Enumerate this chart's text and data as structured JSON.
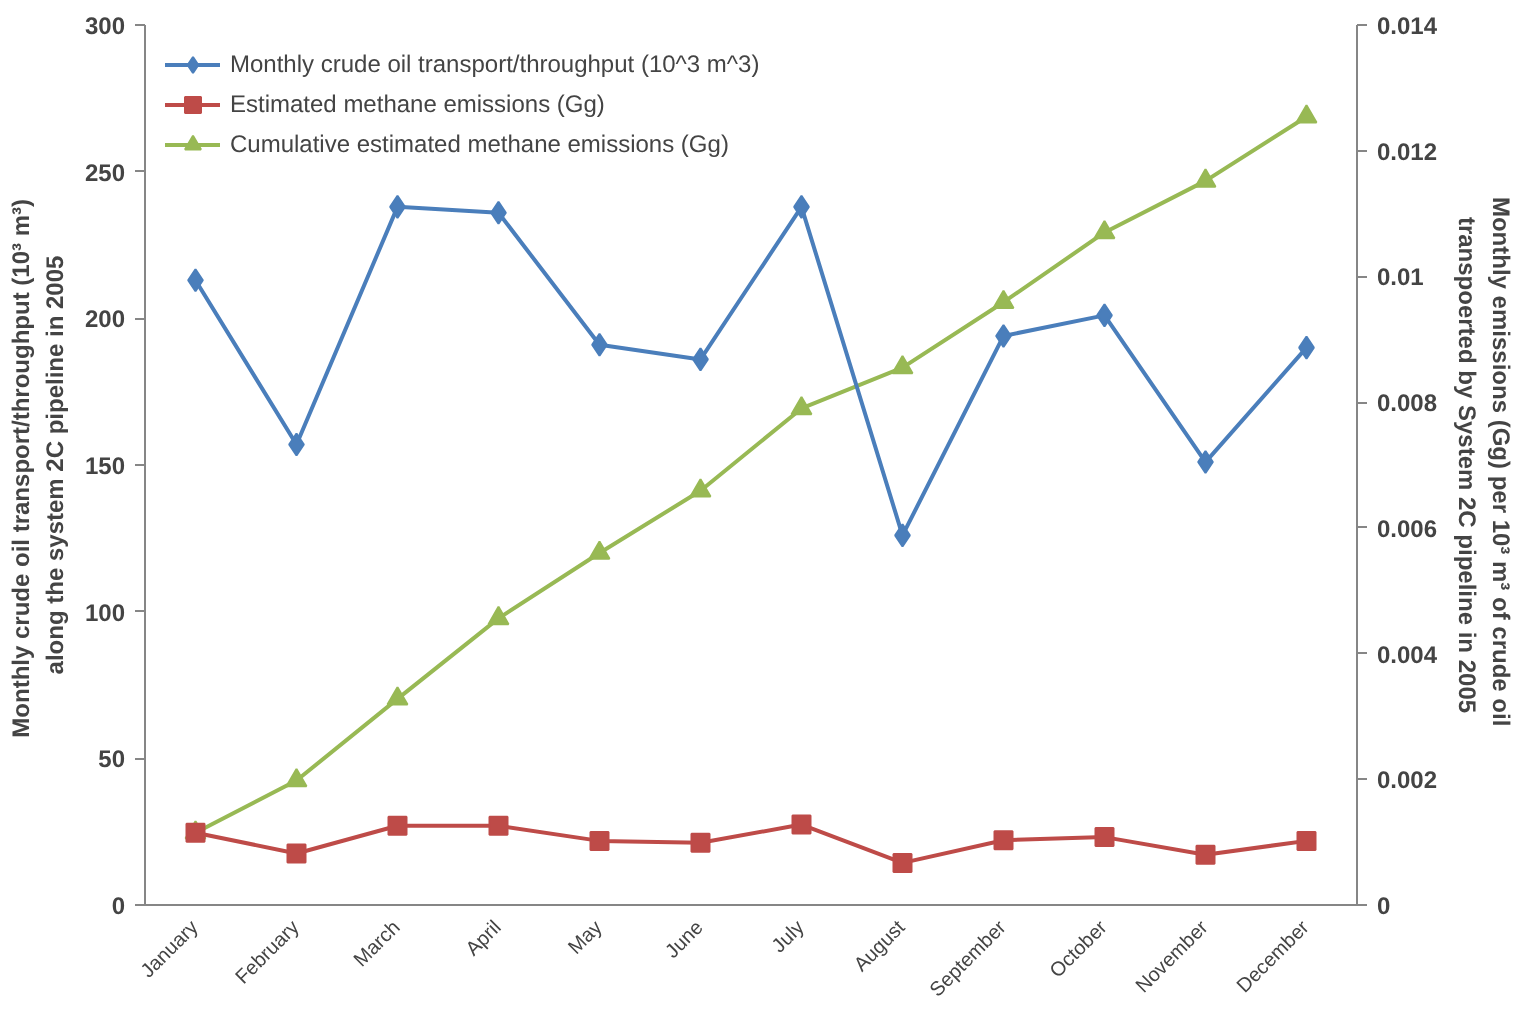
{
  "chart_data": {
    "type": "line",
    "categories": [
      "January",
      "February",
      "March",
      "April",
      "May",
      "June",
      "July",
      "August",
      "September",
      "October",
      "November",
      "December"
    ],
    "series": [
      {
        "name": "Monthly crude oil transport/throughput (10^3 m^3)",
        "color": "#4a7ebb",
        "marker": "diamond",
        "values": [
          213,
          157,
          238,
          236,
          191,
          186,
          238,
          126,
          194,
          201,
          151,
          190
        ]
      },
      {
        "name": "Estimated methane emissions (Gg)",
        "color": "#be4b48",
        "marker": "square",
        "axis": "y2",
        "values": [
          0.00115,
          0.00082,
          0.00126,
          0.00126,
          0.00102,
          0.00099,
          0.00128,
          0.00067,
          0.00103,
          0.00108,
          0.0008,
          0.00102
        ]
      },
      {
        "name": "Cumulative estimated methane emissions (Gg)",
        "color": "#98b954",
        "marker": "triangle",
        "axis": "y2",
        "values": [
          0.00115,
          0.00198,
          0.00328,
          0.00456,
          0.0056,
          0.00659,
          0.0079,
          0.00855,
          0.00959,
          0.0107,
          0.01152,
          0.01254
        ]
      }
    ],
    "ylabel": "Monthly crude oil transport/throughput  (10³ m³)\nalong the system 2C pipeline in 2005",
    "y2label": "Monthly emissions (Gg) per 10³ m³  of crude oil\ntranspoerted by System 2C pipeline in 2005",
    "ylim": [
      0,
      300
    ],
    "yticks": [
      0,
      50,
      100,
      150,
      200,
      250,
      300
    ],
    "y2lim": [
      0,
      0.014
    ],
    "y2ticks": [
      0,
      0.002,
      0.004,
      0.006,
      0.008,
      0.01,
      0.012,
      0.014
    ],
    "grid": false,
    "legend": "top left",
    "line_style": "solid"
  }
}
